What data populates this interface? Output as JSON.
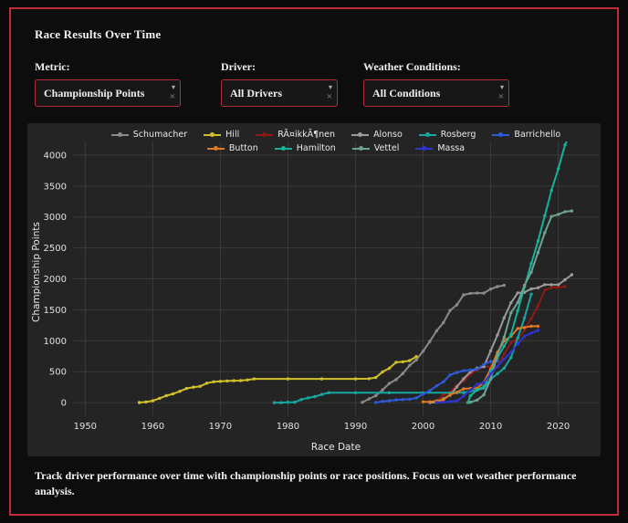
{
  "app": {
    "title": "Race Results Over Time",
    "description": "Track driver performance over time with championship points or race positions. Focus on wet weather performance analysis."
  },
  "icons": {
    "caret": "▾",
    "clear": "×"
  },
  "controls": {
    "metric": {
      "label": "Metric:",
      "value": "Championship Points"
    },
    "driver": {
      "label": "Driver:",
      "value": "All Drivers"
    },
    "weather": {
      "label": "Weather Conditions:",
      "value": "All Conditions"
    }
  },
  "colors": {
    "accent_border": "#c22b3a",
    "panel_bg": "#0d0d0d",
    "chart_bg": "#242424",
    "gridline": "#3a3a3a",
    "tick_text": "#e0e0e0"
  },
  "chart_data": {
    "type": "line",
    "mode": "lines+markers",
    "xlabel": "Race Date",
    "ylabel": "Championship Points",
    "x_ticks": [
      1950,
      1960,
      1970,
      1980,
      1990,
      2000,
      2010,
      2020
    ],
    "y_ticks": [
      0,
      500,
      1000,
      1500,
      2000,
      2500,
      3000,
      3500,
      4000
    ],
    "x_range": [
      1948,
      2026
    ],
    "y_range": [
      -200,
      4220
    ],
    "grid": true,
    "legend_position": "top-center",
    "legend_rows": [
      [
        "Schumacher",
        "Hill",
        "RÃ¤ikkÃ¶nen",
        "Alonso",
        "Rosberg",
        "Barrichello"
      ],
      [
        "Button",
        "Hamilton",
        "Vettel",
        "Massa"
      ]
    ],
    "series": [
      {
        "name": "Schumacher",
        "color": "#8a8a8a",
        "points": [
          [
            1991,
            5
          ],
          [
            1992,
            60
          ],
          [
            1993,
            112
          ],
          [
            1994,
            205
          ],
          [
            1995,
            310
          ],
          [
            1996,
            372
          ],
          [
            1997,
            470
          ],
          [
            1998,
            600
          ],
          [
            1999,
            690
          ],
          [
            2000,
            830
          ],
          [
            2001,
            990
          ],
          [
            2002,
            1160
          ],
          [
            2003,
            1290
          ],
          [
            2004,
            1490
          ],
          [
            2005,
            1580
          ],
          [
            2006,
            1740
          ],
          [
            2007,
            1765
          ],
          [
            2008,
            1770
          ],
          [
            2009,
            1770
          ],
          [
            2010,
            1835
          ],
          [
            2011,
            1875
          ],
          [
            2012,
            1895
          ]
        ]
      },
      {
        "name": "Hill",
        "color": "#d1c02a",
        "points": [
          [
            1958,
            2
          ],
          [
            1959,
            10
          ],
          [
            1960,
            30
          ],
          [
            1961,
            70
          ],
          [
            1962,
            112
          ],
          [
            1963,
            142
          ],
          [
            1964,
            183
          ],
          [
            1965,
            228
          ],
          [
            1966,
            250
          ],
          [
            1967,
            262
          ],
          [
            1968,
            314
          ],
          [
            1969,
            337
          ],
          [
            1970,
            344
          ],
          [
            1971,
            350
          ],
          [
            1972,
            354
          ],
          [
            1973,
            356
          ],
          [
            1974,
            366
          ],
          [
            1975,
            383
          ],
          [
            1980,
            383
          ],
          [
            1985,
            383
          ],
          [
            1990,
            383
          ],
          [
            1992,
            386
          ],
          [
            1993,
            406
          ],
          [
            1994,
            497
          ],
          [
            1995,
            555
          ],
          [
            1996,
            652
          ],
          [
            1997,
            659
          ],
          [
            1998,
            679
          ],
          [
            1999,
            743
          ]
        ]
      },
      {
        "name": "RÃ¤ikkÃ¶nen",
        "color": "#8c1a17",
        "points": [
          [
            2001,
            9
          ],
          [
            2002,
            33
          ],
          [
            2003,
            124
          ],
          [
            2004,
            169
          ],
          [
            2005,
            281
          ],
          [
            2006,
            346
          ],
          [
            2007,
            456
          ],
          [
            2008,
            531
          ],
          [
            2009,
            579
          ],
          [
            2010,
            579
          ],
          [
            2011,
            579
          ],
          [
            2012,
            786
          ],
          [
            2013,
            969
          ],
          [
            2014,
            1024
          ],
          [
            2015,
            1174
          ],
          [
            2016,
            1360
          ],
          [
            2017,
            1565
          ],
          [
            2018,
            1816
          ],
          [
            2019,
            1859
          ],
          [
            2020,
            1863
          ],
          [
            2021,
            1873
          ]
        ]
      },
      {
        "name": "Alonso",
        "color": "#9b9b9b",
        "points": [
          [
            2001,
            0
          ],
          [
            2002,
            6
          ],
          [
            2003,
            61
          ],
          [
            2004,
            120
          ],
          [
            2005,
            253
          ],
          [
            2006,
            387
          ],
          [
            2007,
            496
          ],
          [
            2008,
            557
          ],
          [
            2009,
            583
          ],
          [
            2010,
            835
          ],
          [
            2011,
            1092
          ],
          [
            2012,
            1370
          ],
          [
            2013,
            1612
          ],
          [
            2014,
            1773
          ],
          [
            2015,
            1784
          ],
          [
            2016,
            1838
          ],
          [
            2017,
            1855
          ],
          [
            2018,
            1905
          ],
          [
            2019,
            1905
          ],
          [
            2020,
            1905
          ],
          [
            2021,
            1986
          ],
          [
            2022,
            2067
          ]
        ]
      },
      {
        "name": "Rosberg",
        "color": "#16a8a0",
        "points": [
          [
            1978,
            0
          ],
          [
            1979,
            0
          ],
          [
            1980,
            6
          ],
          [
            1981,
            6
          ],
          [
            1982,
            50
          ],
          [
            1983,
            77
          ],
          [
            1984,
            97
          ],
          [
            1985,
            132
          ],
          [
            1986,
            159
          ],
          [
            1990,
            159
          ],
          [
            1995,
            159
          ],
          [
            2000,
            159
          ],
          [
            2005,
            159
          ],
          [
            2006,
            163
          ],
          [
            2007,
            183
          ],
          [
            2008,
            200
          ],
          [
            2009,
            234
          ],
          [
            2010,
            376
          ],
          [
            2011,
            465
          ],
          [
            2012,
            558
          ],
          [
            2013,
            729
          ],
          [
            2014,
            1046
          ],
          [
            2015,
            1368
          ],
          [
            2016,
            1753
          ]
        ]
      },
      {
        "name": "Barrichello",
        "color": "#2e5bda",
        "points": [
          [
            1993,
            2
          ],
          [
            1994,
            19
          ],
          [
            1995,
            30
          ],
          [
            1996,
            44
          ],
          [
            1997,
            50
          ],
          [
            1998,
            54
          ],
          [
            1999,
            75
          ],
          [
            2000,
            137
          ],
          [
            2001,
            193
          ],
          [
            2002,
            270
          ],
          [
            2003,
            335
          ],
          [
            2004,
            449
          ],
          [
            2005,
            487
          ],
          [
            2006,
            517
          ],
          [
            2007,
            527
          ],
          [
            2008,
            541
          ],
          [
            2009,
            618
          ],
          [
            2010,
            665
          ],
          [
            2011,
            672
          ]
        ]
      },
      {
        "name": "Button",
        "color": "#dd7a23",
        "points": [
          [
            2000,
            12
          ],
          [
            2001,
            14
          ],
          [
            2002,
            28
          ],
          [
            2003,
            45
          ],
          [
            2004,
            130
          ],
          [
            2005,
            167
          ],
          [
            2006,
            223
          ],
          [
            2007,
            229
          ],
          [
            2008,
            232
          ],
          [
            2009,
            327
          ],
          [
            2010,
            541
          ],
          [
            2011,
            811
          ],
          [
            2012,
            999
          ],
          [
            2013,
            1072
          ],
          [
            2014,
            1198
          ],
          [
            2015,
            1214
          ],
          [
            2016,
            1235
          ],
          [
            2017,
            1235
          ]
        ]
      },
      {
        "name": "Hamilton",
        "color": "#17b29a",
        "points": [
          [
            2006.6,
            0
          ],
          [
            2007,
            109
          ],
          [
            2008,
            207
          ],
          [
            2009,
            256
          ],
          [
            2010,
            496
          ],
          [
            2011,
            723
          ],
          [
            2012,
            913
          ],
          [
            2013,
            1102
          ],
          [
            2014,
            1486
          ],
          [
            2015,
            1867
          ],
          [
            2016,
            2247
          ],
          [
            2017,
            2610
          ],
          [
            2018,
            3018
          ],
          [
            2019,
            3431
          ],
          [
            2020,
            3778
          ],
          [
            2021,
            4165
          ],
          [
            2022,
            4405
          ]
        ]
      },
      {
        "name": "Vettel",
        "color": "#6fa292",
        "points": [
          [
            2007,
            6
          ],
          [
            2008,
            41
          ],
          [
            2009,
            125
          ],
          [
            2010,
            381
          ],
          [
            2011,
            773
          ],
          [
            2012,
            1054
          ],
          [
            2013,
            1451
          ],
          [
            2014,
            1618
          ],
          [
            2015,
            1896
          ],
          [
            2016,
            2108
          ],
          [
            2017,
            2425
          ],
          [
            2018,
            2745
          ],
          [
            2019,
            3009
          ],
          [
            2020,
            3042
          ],
          [
            2021,
            3085
          ],
          [
            2022,
            3098
          ]
        ]
      },
      {
        "name": "Massa",
        "color": "#2d35cf",
        "points": [
          [
            2002,
            4
          ],
          [
            2003,
            4
          ],
          [
            2004,
            16
          ],
          [
            2005,
            27
          ],
          [
            2006,
            107
          ],
          [
            2007,
            201
          ],
          [
            2008,
            298
          ],
          [
            2009,
            320
          ],
          [
            2010,
            464
          ],
          [
            2011,
            582
          ],
          [
            2012,
            704
          ],
          [
            2013,
            816
          ],
          [
            2014,
            950
          ],
          [
            2015,
            1073
          ],
          [
            2016,
            1126
          ],
          [
            2017,
            1167
          ]
        ]
      }
    ]
  }
}
